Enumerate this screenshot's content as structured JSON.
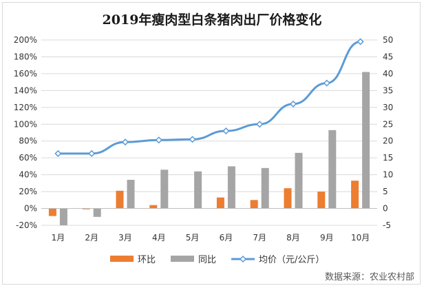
{
  "chart_data": {
    "type": "bar",
    "title": "2019年瘦肉型白条猪肉出厂价格变化",
    "categories": [
      "1月",
      "2月",
      "3月",
      "4月",
      "5月",
      "6月",
      "7月",
      "8月",
      "9月",
      "10月"
    ],
    "series": [
      {
        "name": "环比",
        "type": "bar",
        "axis": "left",
        "color": "#ed7d31",
        "values": [
          -9,
          -1,
          21,
          4,
          0,
          13,
          10,
          24,
          20,
          33
        ]
      },
      {
        "name": "同比",
        "type": "bar",
        "axis": "left",
        "color": "#a5a5a5",
        "values": [
          -20,
          -10,
          34,
          46,
          44,
          50,
          48,
          66,
          93,
          162
        ]
      },
      {
        "name": "均价（元/公斤）",
        "type": "line",
        "axis": "right",
        "color": "#5b9bd5",
        "values": [
          16.3,
          16.3,
          19.7,
          20.3,
          20.5,
          23,
          25,
          31,
          37.2,
          49.5
        ]
      }
    ],
    "y_left": {
      "min": -20,
      "max": 200,
      "step": 20,
      "tick_labels": [
        "-20%",
        "0%",
        "20%",
        "40%",
        "60%",
        "80%",
        "100%",
        "120%",
        "140%",
        "160%",
        "180%",
        "200%"
      ]
    },
    "y_right": {
      "min": -5,
      "max": 50,
      "step": 5,
      "tick_labels": [
        "-5",
        "0",
        "5",
        "10",
        "15",
        "20",
        "25",
        "30",
        "35",
        "40",
        "45",
        "50"
      ]
    },
    "grid": true,
    "legend_position": "bottom",
    "source": "数据来源：农业农村部"
  }
}
